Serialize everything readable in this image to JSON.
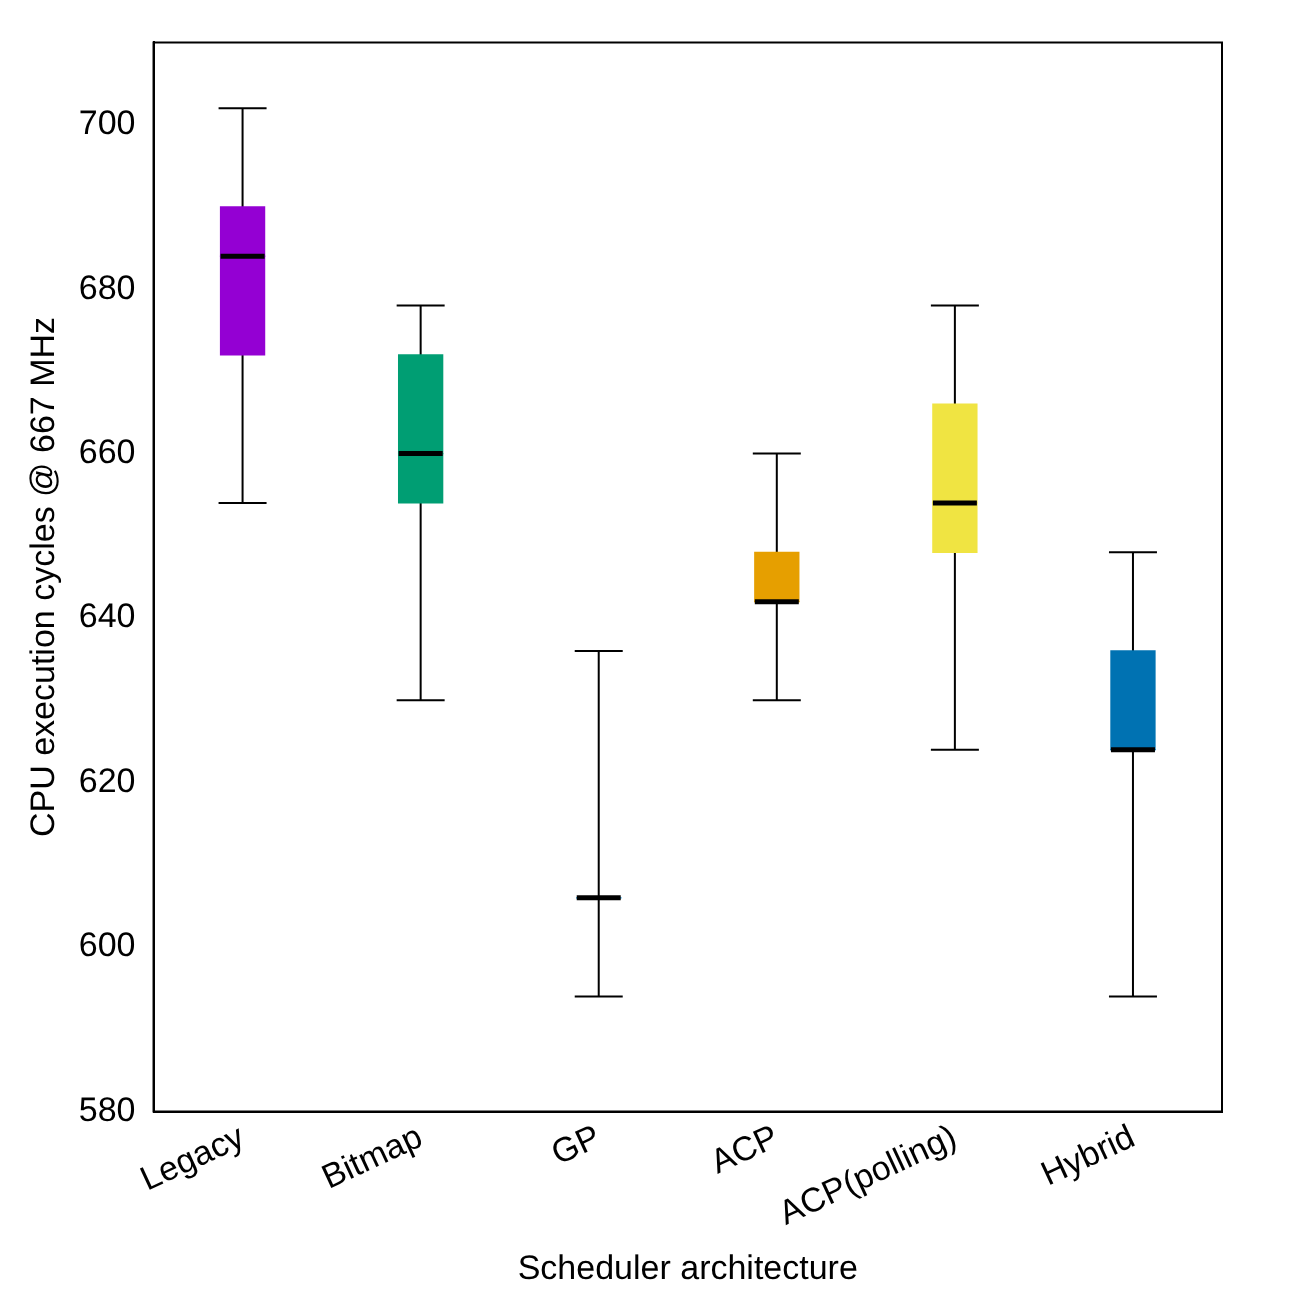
{
  "chart_data": {
    "type": "box",
    "xlabel": "Scheduler architecture",
    "ylabel": "CPU execution cycles @ 667 MHz",
    "categories": [
      "Legacy",
      "Bitmap",
      "GP",
      "ACP",
      "ACP(polling)",
      "Hybrid"
    ],
    "colors": [
      "#9400d3",
      "#009e73",
      "#56b4e9",
      "#e69f00",
      "#f0e442",
      "#0072b2"
    ],
    "boxes": [
      {
        "low": 654,
        "q1": 672,
        "median": 684,
        "q3": 690,
        "high": 702
      },
      {
        "low": 630,
        "q1": 654,
        "median": 660,
        "q3": 672,
        "high": 678
      },
      {
        "low": 594,
        "q1": 606,
        "median": 606,
        "q3": 606,
        "high": 636
      },
      {
        "low": 630,
        "q1": 642,
        "median": 642,
        "q3": 648,
        "high": 660
      },
      {
        "low": 624,
        "q1": 648,
        "median": 654,
        "q3": 666,
        "high": 678
      },
      {
        "low": 594,
        "q1": 624,
        "median": 624,
        "q3": 636,
        "high": 648
      }
    ],
    "ylim": [
      580,
      710
    ],
    "yticks": [
      580,
      600,
      620,
      640,
      660,
      680,
      700
    ],
    "grid": false,
    "legend": false
  }
}
